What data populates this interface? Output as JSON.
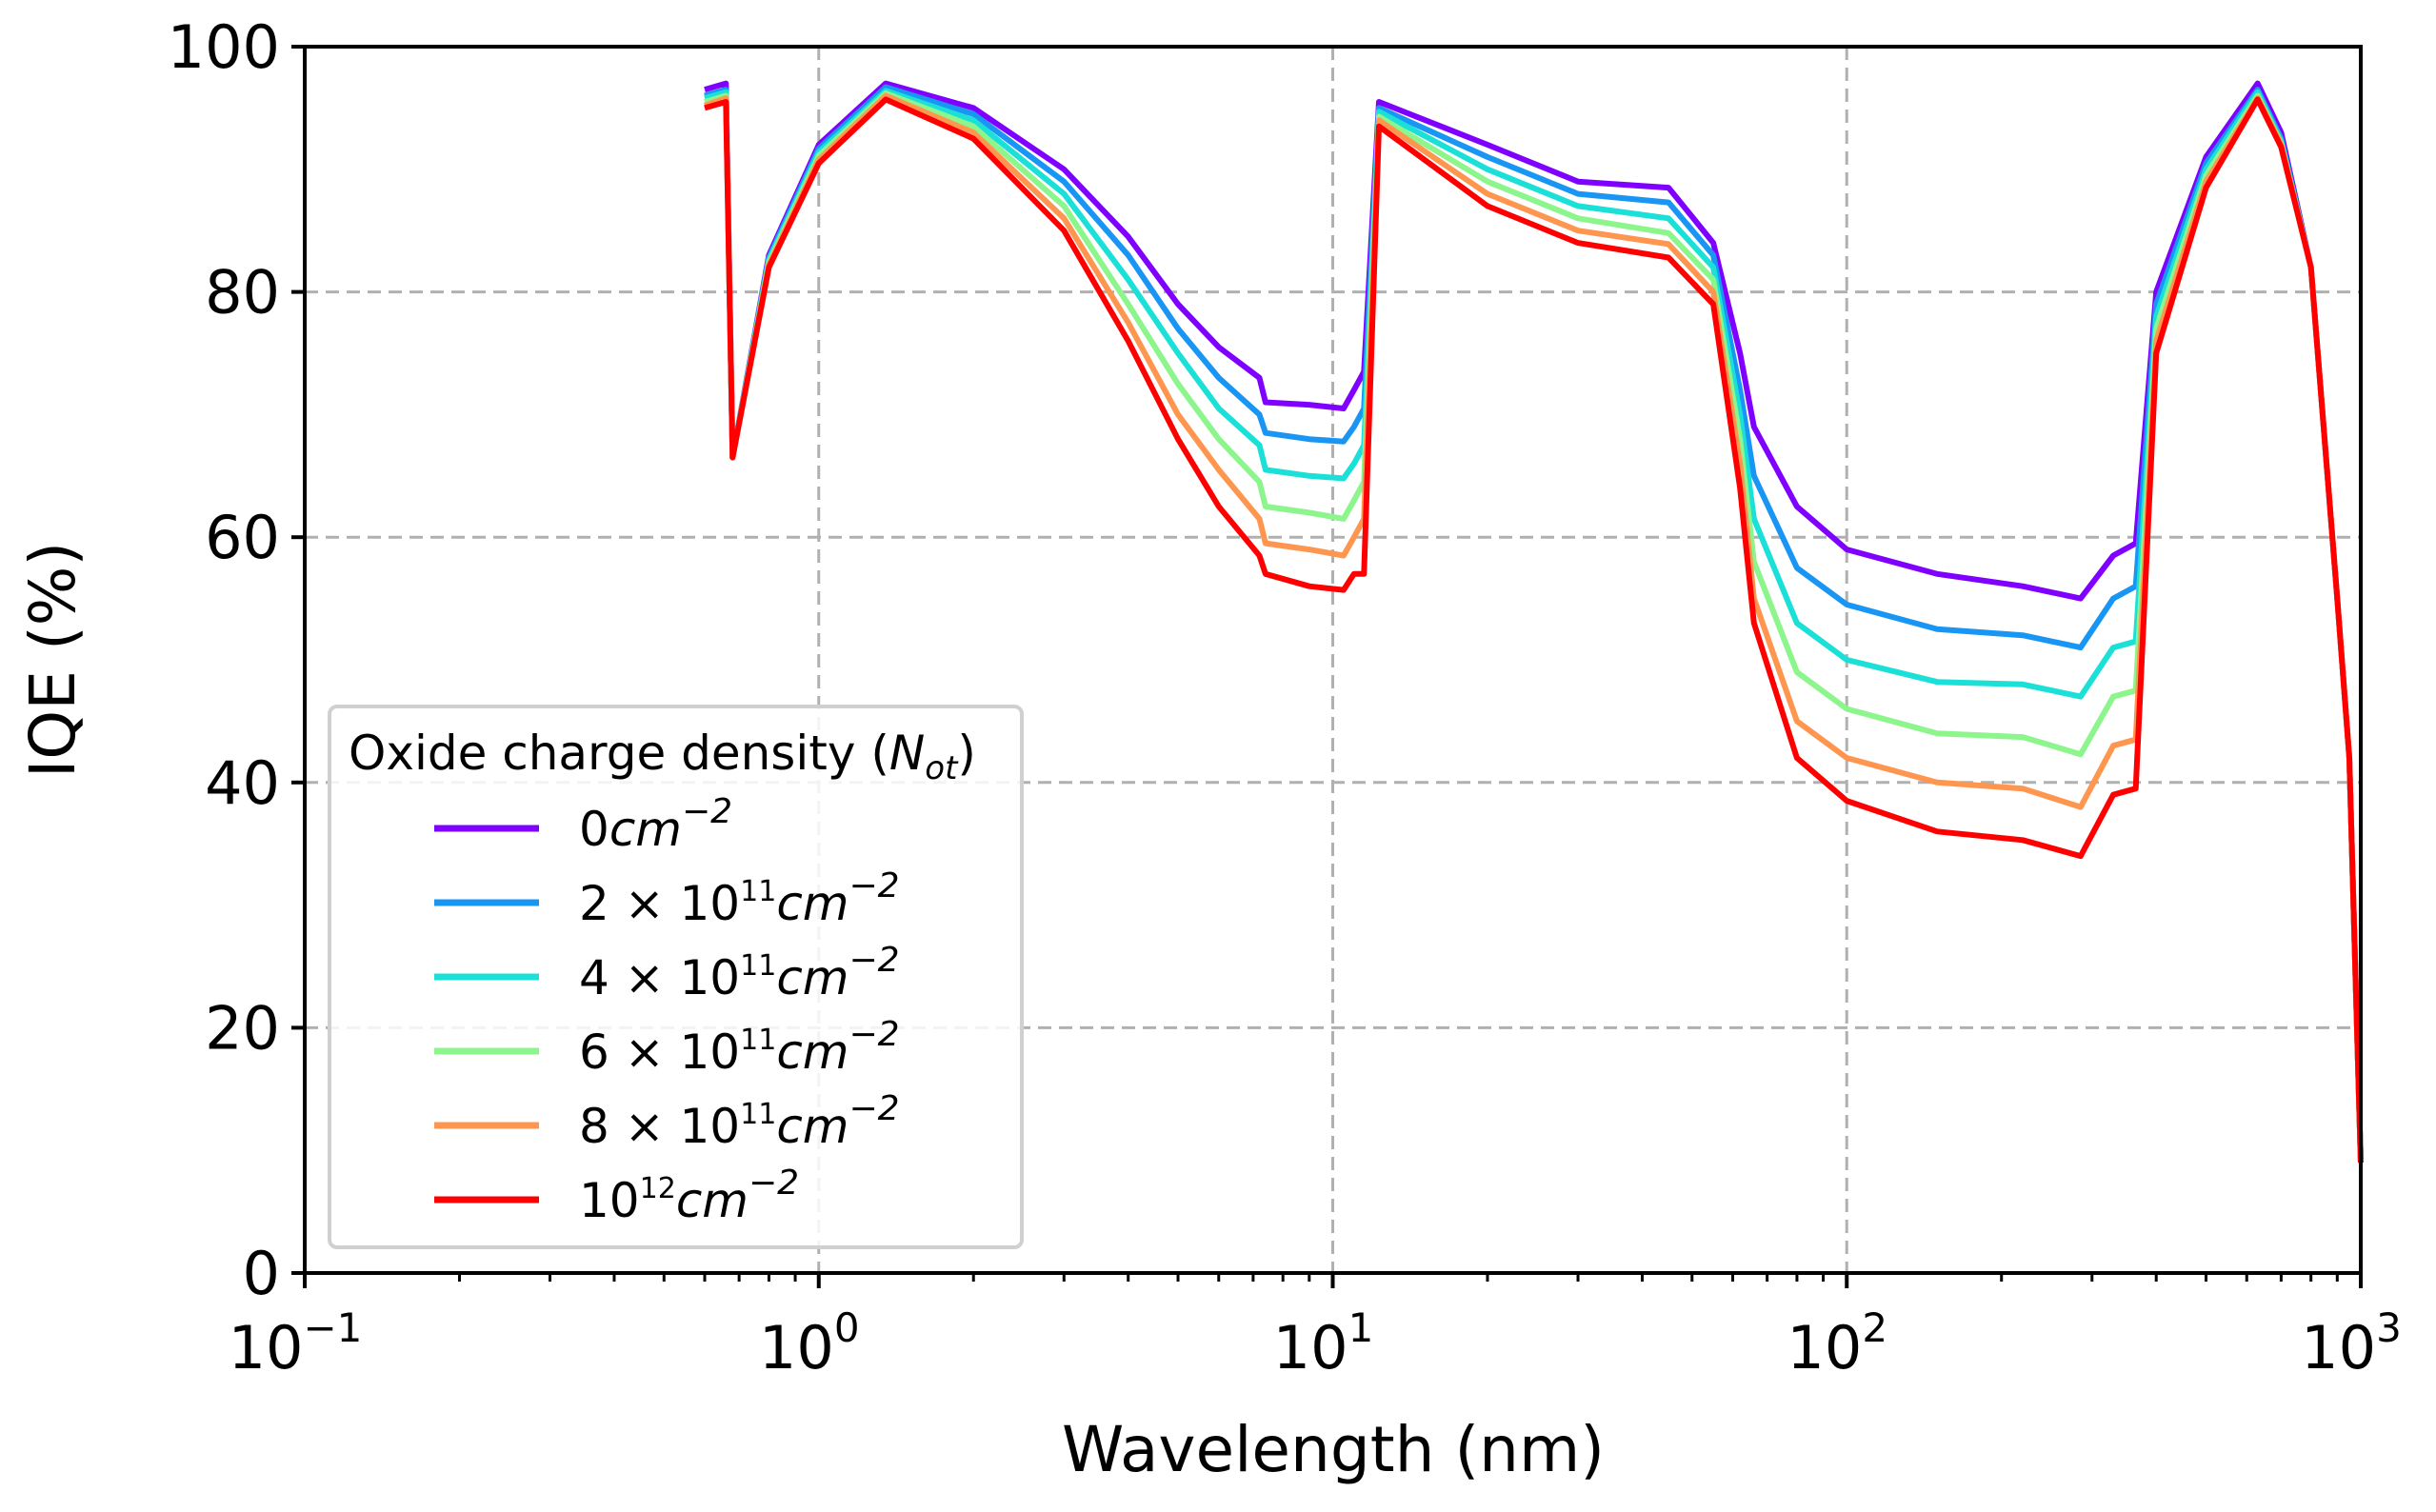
{
  "chart_data": {
    "type": "line",
    "title": "",
    "xlabel": "Wavelength (nm)",
    "ylabel": "IQE (%)",
    "xscale": "log",
    "xlim": [
      0.1,
      1000
    ],
    "ylim": [
      0,
      100
    ],
    "grid": true,
    "xticks": [
      0.1,
      1,
      10,
      100,
      1000
    ],
    "xtick_labels": [
      {
        "base": "10",
        "exp": "−1"
      },
      {
        "base": "10",
        "exp": "0"
      },
      {
        "base": "10",
        "exp": "1"
      },
      {
        "base": "10",
        "exp": "2"
      },
      {
        "base": "10",
        "exp": "3"
      }
    ],
    "yticks": [
      0,
      20,
      40,
      60,
      80,
      100
    ],
    "ytick_labels": [
      "0",
      "20",
      "40",
      "60",
      "80",
      "100"
    ],
    "legend": {
      "title": "Oxide charge density (",
      "title_symbol": "N",
      "title_sub": "ot",
      "title_end": ")",
      "placement": "lower-left"
    },
    "x": [
      0.6,
      0.66,
      0.68,
      0.8,
      1.0,
      1.35,
      2,
      3,
      4,
      5,
      6,
      7.2,
      7.4,
      9,
      10.5,
      11,
      11.5,
      12.3,
      20,
      30,
      45,
      55,
      62,
      66,
      80,
      100,
      150,
      220,
      285,
      330,
      365,
      400,
      500,
      630,
      700,
      800,
      900,
      950,
      1000
    ],
    "series": [
      {
        "name": "0cm⁻²",
        "label_pre": "0",
        "label_exp": "",
        "label_unit": "cm",
        "color": "#8000ff",
        "values": [
          96.5,
          97,
          66.5,
          83,
          92,
          97,
          95,
          90,
          84.5,
          79,
          75.5,
          73,
          71,
          70.8,
          70.5,
          72,
          73.5,
          95.5,
          92,
          89,
          88.5,
          84,
          75,
          69,
          62.5,
          59,
          57,
          56,
          55,
          58.5,
          59.5,
          80,
          91,
          97,
          93,
          82,
          55,
          42,
          9
        ]
      },
      {
        "name": "2 × 10¹¹cm⁻²",
        "label_pre": "2 × 10",
        "label_exp": "11",
        "label_unit": "cm",
        "color": "#1996f3",
        "values": [
          96,
          96.5,
          66.5,
          82.8,
          91.7,
          96.7,
          94.5,
          89,
          83,
          77,
          73,
          70,
          68.5,
          68,
          67.8,
          69,
          70.5,
          95,
          91,
          88,
          87.3,
          83,
          72,
          65,
          57.5,
          54.5,
          52.5,
          52,
          51,
          55,
          56,
          79,
          90.5,
          96.5,
          92.5,
          82,
          55,
          42,
          9
        ]
      },
      {
        "name": "4 × 10¹¹cm⁻²",
        "label_pre": "4 × 10",
        "label_exp": "11",
        "label_unit": "cm",
        "color": "#1ae0d8",
        "values": [
          95.8,
          96.3,
          66.5,
          82.6,
          91.4,
          96.4,
          94,
          88,
          81,
          75,
          70.5,
          67.5,
          65.5,
          65,
          64.8,
          66,
          67.5,
          94.7,
          90,
          87,
          86,
          82,
          70,
          61.5,
          53,
          50,
          48.2,
          48,
          47,
          51,
          51.5,
          78,
          90,
          96.3,
          92.3,
          82,
          55,
          42,
          9
        ]
      },
      {
        "name": "6 × 10¹¹cm⁻²",
        "label_pre": "6 × 10",
        "label_exp": "11",
        "label_unit": "cm",
        "color": "#8cf58c",
        "values": [
          95.5,
          96,
          66.5,
          82.4,
          91.1,
          96.2,
          93.5,
          87,
          79,
          72.5,
          68,
          64.5,
          62.5,
          62,
          61.5,
          63,
          64.5,
          94.3,
          89,
          86,
          84.8,
          81,
          68,
          58,
          49,
          46,
          44,
          43.7,
          42.3,
          47,
          47.5,
          77,
          89.5,
          96,
          92.1,
          82,
          55,
          42,
          9
        ]
      },
      {
        "name": "8 × 10¹¹cm⁻²",
        "label_pre": "8 × 10",
        "label_exp": "11",
        "label_unit": "cm",
        "color": "#ff9650",
        "values": [
          95.2,
          95.8,
          66.5,
          82.2,
          90.8,
          96,
          93,
          86,
          77.5,
          70,
          65.5,
          61.5,
          59.5,
          59,
          58.5,
          60,
          61.5,
          94,
          88,
          85,
          83.9,
          80,
          66,
          55,
          45,
          42,
          40,
          39.5,
          38,
          43,
          43.5,
          76,
          89,
          95.8,
          92,
          82,
          55,
          42,
          9
        ]
      },
      {
        "name": "10¹²cm⁻²",
        "label_pre": "10",
        "label_exp": "12",
        "label_unit": "cm",
        "color": "#ff0000",
        "values": [
          95,
          95.5,
          66.5,
          82,
          90.5,
          95.7,
          92.5,
          85,
          76,
          68,
          62.5,
          58.5,
          57,
          56,
          55.7,
          57,
          57,
          93.5,
          87,
          84,
          82.8,
          79,
          64,
          53,
          42,
          38.5,
          36,
          35.3,
          34,
          39,
          39.5,
          75,
          88.5,
          95.7,
          91.8,
          82,
          55,
          42,
          9
        ]
      }
    ]
  }
}
